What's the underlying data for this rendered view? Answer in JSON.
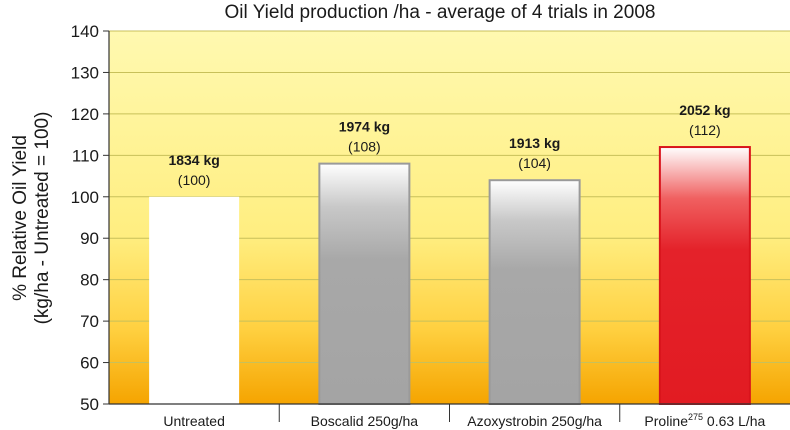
{
  "chart_data": {
    "type": "bar",
    "title": "Oil Yield production /ha - average of 4 trials in 2008",
    "ylabel_line1": "% Relative Oil Yield",
    "ylabel_line2": "(kg/ha - Untreated = 100)",
    "ylim": [
      50,
      140
    ],
    "yticks": [
      50,
      60,
      70,
      80,
      90,
      100,
      110,
      120,
      130,
      140
    ],
    "grid": true,
    "categories": [
      {
        "label": "Untreated",
        "sup": "",
        "suffix": ""
      },
      {
        "label": "Boscalid 250g/ha",
        "sup": "",
        "suffix": ""
      },
      {
        "label": "Azoxystrobin 250g/ha",
        "sup": "",
        "suffix": ""
      },
      {
        "label": "Proline",
        "sup": "275",
        "suffix": " 0.63 L/ha"
      }
    ],
    "values": [
      100,
      108,
      104,
      112
    ],
    "kg_labels": [
      "1834 kg",
      "1974 kg",
      "1913 kg",
      "2052 kg"
    ],
    "index_labels": [
      "(100)",
      "(108)",
      "(104)",
      "(112)"
    ],
    "colors": {
      "background_top": "#FFF8A0",
      "background_bottom": "#F5A800",
      "grid": "#C8C05A",
      "untreated": "#FFFFFF",
      "grey_bar": "#A6A6A6",
      "red_bar": "#E21B22"
    }
  }
}
